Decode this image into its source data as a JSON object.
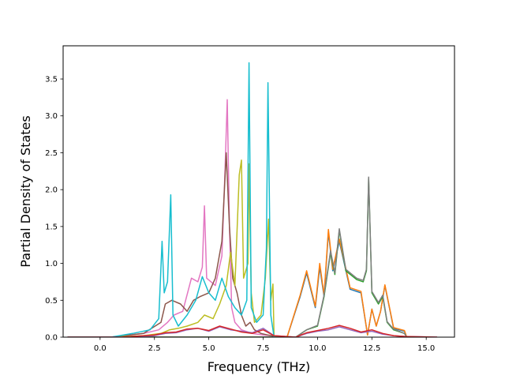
{
  "chart_data": {
    "type": "line",
    "title": "",
    "xlabel": "Frequency (THz)",
    "ylabel": "Partial Density of States",
    "xlim": [
      -1.7,
      16.3
    ],
    "ylim": [
      0,
      3.95
    ],
    "xticks": [
      0.0,
      2.5,
      5.0,
      7.5,
      10.0,
      12.5,
      15.0
    ],
    "xtick_labels": [
      "0.0",
      "2.5",
      "5.0",
      "7.5",
      "10.0",
      "12.5",
      "15.0"
    ],
    "yticks": [
      0.0,
      0.5,
      1.0,
      1.5,
      2.0,
      2.5,
      3.0,
      3.5
    ],
    "ytick_labels": [
      "0.0",
      "0.5",
      "1.0",
      "1.5",
      "2.0",
      "2.5",
      "3.0",
      "3.5"
    ],
    "grid": false,
    "legend": "none",
    "series": [
      {
        "color": "#1f77b4",
        "x": [
          -1.5,
          2.5,
          8.6,
          9.2,
          9.5,
          9.9,
          10.1,
          10.3,
          10.5,
          10.7,
          11.0,
          11.5,
          12.0,
          12.3,
          12.5,
          12.7,
          12.9,
          13.1,
          13.5,
          14.0,
          14.1
        ],
        "y": [
          0,
          0,
          0,
          0.55,
          0.87,
          0.4,
          0.95,
          0.55,
          1.42,
          0.9,
          1.3,
          0.65,
          0.6,
          0.03,
          0.38,
          0.15,
          0.35,
          0.7,
          0.12,
          0.08,
          0
        ]
      },
      {
        "color": "#ff7f0e",
        "x": [
          -1.5,
          2.5,
          8.6,
          9.2,
          9.5,
          9.9,
          10.1,
          10.3,
          10.5,
          10.7,
          11.0,
          11.5,
          12.0,
          12.3,
          12.5,
          12.7,
          12.9,
          13.1,
          13.5,
          14.0,
          14.1
        ],
        "y": [
          0,
          0,
          0,
          0.57,
          0.9,
          0.42,
          1.0,
          0.57,
          1.46,
          0.92,
          1.33,
          0.67,
          0.62,
          0.03,
          0.38,
          0.15,
          0.35,
          0.71,
          0.13,
          0.09,
          0
        ]
      },
      {
        "color": "#2ca02c",
        "x": [
          -1.5,
          2.5,
          9.0,
          9.5,
          10.0,
          10.3,
          10.6,
          10.8,
          11.0,
          11.3,
          11.8,
          12.1,
          12.25,
          12.35,
          12.5,
          12.8,
          13.0,
          13.2,
          13.5,
          14.0,
          14.1
        ],
        "y": [
          0,
          0,
          0,
          0.1,
          0.15,
          0.55,
          1.15,
          0.85,
          1.45,
          0.9,
          0.78,
          0.75,
          0.9,
          2.15,
          0.6,
          0.45,
          0.55,
          0.2,
          0.1,
          0.05,
          0
        ]
      },
      {
        "color": "#7f7f7f",
        "x": [
          -1.5,
          2.5,
          9.0,
          9.5,
          10.0,
          10.3,
          10.6,
          10.8,
          11.0,
          11.3,
          11.8,
          12.1,
          12.25,
          12.35,
          12.5,
          12.8,
          13.0,
          13.2,
          13.5,
          14.0,
          14.1
        ],
        "y": [
          0,
          0,
          0,
          0.1,
          0.16,
          0.57,
          1.17,
          0.87,
          1.47,
          0.92,
          0.8,
          0.77,
          0.92,
          2.17,
          0.62,
          0.47,
          0.57,
          0.21,
          0.11,
          0.05,
          0
        ]
      },
      {
        "color": "#e377c2",
        "x": [
          -1.5,
          0.5,
          2.0,
          2.7,
          3.1,
          3.4,
          3.8,
          4.2,
          4.5,
          4.7,
          4.8,
          4.9,
          5.3,
          5.6,
          5.75,
          5.85,
          5.95,
          6.05,
          6.2,
          6.5,
          7.0,
          7.5,
          7.9,
          8.0
        ],
        "y": [
          0,
          0,
          0.05,
          0.1,
          0.2,
          0.3,
          0.35,
          0.8,
          0.75,
          0.95,
          1.78,
          0.8,
          0.7,
          1.1,
          2.3,
          3.22,
          1.5,
          0.4,
          0.2,
          0.1,
          0.05,
          0.03,
          0.02,
          0
        ]
      },
      {
        "color": "#8c564b",
        "x": [
          -1.5,
          0.5,
          2.0,
          2.8,
          3.0,
          3.3,
          3.7,
          4.0,
          4.3,
          4.6,
          5.0,
          5.3,
          5.6,
          5.8,
          5.95,
          6.1,
          6.3,
          6.5,
          6.7,
          6.9,
          7.1,
          7.4,
          7.7,
          7.9,
          8.0
        ],
        "y": [
          0,
          0,
          0.05,
          0.2,
          0.45,
          0.5,
          0.45,
          0.35,
          0.5,
          0.55,
          0.6,
          0.8,
          1.3,
          2.5,
          1.5,
          0.8,
          0.6,
          0.3,
          0.15,
          0.2,
          0.1,
          0.05,
          0.03,
          0.02,
          0
        ]
      },
      {
        "color": "#bcbd22",
        "x": [
          -1.5,
          0.5,
          2.0,
          2.8,
          3.2,
          3.6,
          4.0,
          4.5,
          4.8,
          5.2,
          5.5,
          5.8,
          6.0,
          6.2,
          6.4,
          6.5,
          6.6,
          6.8,
          6.85,
          6.95,
          7.1,
          7.4,
          7.6,
          7.75,
          7.85,
          7.95,
          8.0
        ],
        "y": [
          0,
          0,
          0.02,
          0.05,
          0.1,
          0.12,
          0.15,
          0.2,
          0.3,
          0.25,
          0.45,
          0.7,
          1.15,
          0.7,
          2.2,
          2.4,
          0.8,
          1.0,
          2.35,
          0.6,
          0.2,
          0.3,
          0.8,
          1.6,
          0.5,
          0.72,
          0
        ]
      },
      {
        "color": "#17becf",
        "x": [
          -1.5,
          0.5,
          1.5,
          2.3,
          2.7,
          2.85,
          2.95,
          3.1,
          3.25,
          3.35,
          3.6,
          4.0,
          4.4,
          4.7,
          5.0,
          5.3,
          5.6,
          5.9,
          6.2,
          6.5,
          6.75,
          6.85,
          6.95,
          7.2,
          7.5,
          7.65,
          7.72,
          7.85,
          8.0
        ],
        "y": [
          0,
          0,
          0.05,
          0.1,
          0.25,
          1.3,
          0.6,
          0.75,
          1.93,
          0.3,
          0.15,
          0.3,
          0.5,
          0.82,
          0.6,
          0.5,
          0.8,
          0.55,
          0.4,
          0.3,
          0.5,
          3.72,
          0.4,
          0.2,
          0.3,
          1.2,
          3.45,
          0.3,
          0
        ]
      },
      {
        "color": "#9467bd",
        "x": [
          -1.5,
          1.0,
          2.5,
          3.0,
          3.5,
          4.0,
          4.5,
          5.0,
          5.5,
          6.0,
          6.5,
          7.0,
          7.5,
          8.0,
          9.0,
          9.5,
          10.0,
          10.5,
          11.0,
          11.5,
          12.0,
          12.5,
          13.0,
          13.5,
          14.0,
          15.5
        ],
        "y": [
          0,
          0,
          0.02,
          0.05,
          0.06,
          0.1,
          0.12,
          0.08,
          0.14,
          0.1,
          0.08,
          0.06,
          0.12,
          0.02,
          0,
          0.05,
          0.08,
          0.1,
          0.14,
          0.1,
          0.06,
          0.08,
          0.04,
          0.02,
          0.01,
          0
        ]
      },
      {
        "color": "#d62728",
        "x": [
          -1.5,
          1.0,
          2.5,
          3.0,
          3.5,
          4.0,
          4.5,
          5.0,
          5.5,
          6.0,
          6.5,
          7.0,
          7.5,
          8.0,
          9.0,
          9.5,
          10.0,
          10.5,
          11.0,
          11.5,
          12.0,
          12.5,
          13.0,
          13.5,
          14.0,
          15.5
        ],
        "y": [
          0,
          0,
          0.03,
          0.06,
          0.07,
          0.11,
          0.12,
          0.09,
          0.15,
          0.11,
          0.07,
          0.05,
          0.1,
          0.02,
          0,
          0.06,
          0.09,
          0.12,
          0.16,
          0.12,
          0.07,
          0.1,
          0.05,
          0.02,
          0.01,
          0
        ]
      }
    ]
  }
}
